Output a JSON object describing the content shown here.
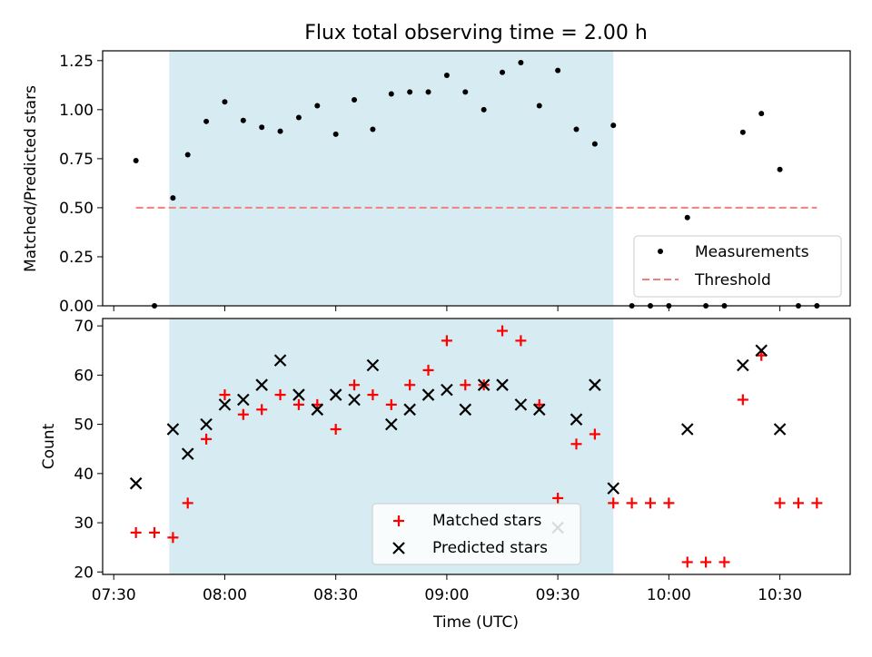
{
  "chart_data": [
    {
      "type": "scatter",
      "title": "Flux total observing time = 2.00 h",
      "xlabel": "",
      "ylabel": "Matched/Predicted stars",
      "ylim": [
        0,
        1.3
      ],
      "yticks": [
        "0.00",
        "0.25",
        "0.50",
        "0.75",
        "1.00",
        "1.25"
      ],
      "highlight_span": {
        "start": "07:45",
        "end": "09:45",
        "color": "#add8e6"
      },
      "threshold": {
        "name": "Threshold",
        "value": 0.5,
        "from": "07:36",
        "to": "10:40",
        "color": "#f08080"
      },
      "legend_position": "lower right",
      "series": [
        {
          "name": "Measurements",
          "color": "#000000",
          "points": [
            [
              "07:36",
              0.74
            ],
            [
              "07:41",
              0.0
            ],
            [
              "07:46",
              0.55
            ],
            [
              "07:50",
              0.77
            ],
            [
              "07:55",
              0.94
            ],
            [
              "08:00",
              1.04
            ],
            [
              "08:05",
              0.945
            ],
            [
              "08:10",
              0.91
            ],
            [
              "08:15",
              0.89
            ],
            [
              "08:20",
              0.96
            ],
            [
              "08:25",
              1.02
            ],
            [
              "08:30",
              0.875
            ],
            [
              "08:35",
              1.05
            ],
            [
              "08:40",
              0.9
            ],
            [
              "08:45",
              1.08
            ],
            [
              "08:50",
              1.09
            ],
            [
              "08:55",
              1.09
            ],
            [
              "09:00",
              1.175
            ],
            [
              "09:05",
              1.09
            ],
            [
              "09:10",
              1.0
            ],
            [
              "09:15",
              1.19
            ],
            [
              "09:20",
              1.24
            ],
            [
              "09:25",
              1.02
            ],
            [
              "09:30",
              1.2
            ],
            [
              "09:35",
              0.9
            ],
            [
              "09:40",
              0.825
            ],
            [
              "09:45",
              0.92
            ],
            [
              "09:50",
              0.0
            ],
            [
              "09:55",
              0.0
            ],
            [
              "10:00",
              0.0
            ],
            [
              "10:05",
              0.45
            ],
            [
              "10:10",
              0.0
            ],
            [
              "10:15",
              0.0
            ],
            [
              "10:20",
              0.885
            ],
            [
              "10:25",
              0.98
            ],
            [
              "10:30",
              0.695
            ],
            [
              "10:35",
              0.0
            ],
            [
              "10:40",
              0.0
            ]
          ]
        }
      ]
    },
    {
      "type": "scatter",
      "title": "",
      "xlabel": "Time (UTC)",
      "ylabel": "Count",
      "ylim": [
        19.5,
        71.5
      ],
      "yticks": [
        "20",
        "30",
        "40",
        "50",
        "60",
        "70"
      ],
      "xticks": [
        "07:30",
        "08:00",
        "08:30",
        "09:00",
        "09:30",
        "10:00",
        "10:30"
      ],
      "xlim": [
        "07:27",
        "10:49"
      ],
      "highlight_span": {
        "start": "07:45",
        "end": "09:45",
        "color": "#add8e6"
      },
      "legend_position": "lower center",
      "series": [
        {
          "name": "Matched stars",
          "marker": "plus",
          "color": "#ff0000",
          "points": [
            [
              "07:36",
              28
            ],
            [
              "07:41",
              28
            ],
            [
              "07:46",
              27
            ],
            [
              "07:50",
              34
            ],
            [
              "07:55",
              47
            ],
            [
              "08:00",
              56
            ],
            [
              "08:05",
              52
            ],
            [
              "08:10",
              53
            ],
            [
              "08:15",
              56
            ],
            [
              "08:20",
              54
            ],
            [
              "08:25",
              54
            ],
            [
              "08:30",
              49
            ],
            [
              "08:35",
              58
            ],
            [
              "08:40",
              56
            ],
            [
              "08:45",
              54
            ],
            [
              "08:50",
              58
            ],
            [
              "08:55",
              61
            ],
            [
              "09:00",
              67
            ],
            [
              "09:05",
              58
            ],
            [
              "09:10",
              58
            ],
            [
              "09:15",
              69
            ],
            [
              "09:20",
              67
            ],
            [
              "09:25",
              54
            ],
            [
              "09:30",
              35
            ],
            [
              "09:35",
              46
            ],
            [
              "09:40",
              48
            ],
            [
              "09:45",
              34
            ],
            [
              "09:50",
              34
            ],
            [
              "09:55",
              34
            ],
            [
              "10:00",
              34
            ],
            [
              "10:05",
              22
            ],
            [
              "10:10",
              22
            ],
            [
              "10:15",
              22
            ],
            [
              "10:20",
              55
            ],
            [
              "10:25",
              64
            ],
            [
              "10:30",
              34
            ],
            [
              "10:35",
              34
            ],
            [
              "10:40",
              34
            ]
          ]
        },
        {
          "name": "Predicted stars",
          "marker": "x",
          "color": "#000000",
          "points": [
            [
              "07:36",
              38
            ],
            [
              "07:46",
              49
            ],
            [
              "07:50",
              44
            ],
            [
              "07:55",
              50
            ],
            [
              "08:00",
              54
            ],
            [
              "08:05",
              55
            ],
            [
              "08:10",
              58
            ],
            [
              "08:15",
              63
            ],
            [
              "08:20",
              56
            ],
            [
              "08:25",
              53
            ],
            [
              "08:30",
              56
            ],
            [
              "08:35",
              55
            ],
            [
              "08:40",
              62
            ],
            [
              "08:45",
              50
            ],
            [
              "08:50",
              53
            ],
            [
              "08:55",
              56
            ],
            [
              "09:00",
              57
            ],
            [
              "09:05",
              53
            ],
            [
              "09:10",
              58
            ],
            [
              "09:15",
              58
            ],
            [
              "09:20",
              54
            ],
            [
              "09:25",
              53
            ],
            [
              "09:30",
              29
            ],
            [
              "09:35",
              51
            ],
            [
              "09:40",
              58
            ],
            [
              "09:45",
              37
            ],
            [
              "10:05",
              49
            ],
            [
              "10:20",
              62
            ],
            [
              "10:25",
              65
            ],
            [
              "10:30",
              49
            ]
          ]
        }
      ]
    }
  ]
}
